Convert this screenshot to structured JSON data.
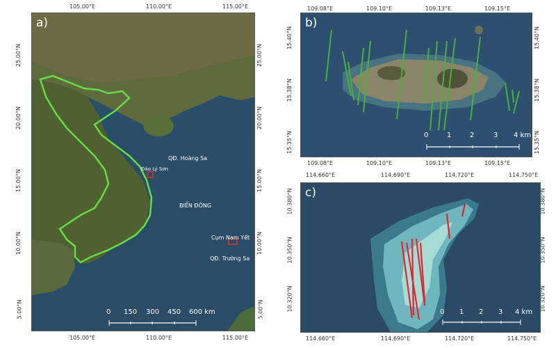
{
  "panel_a": {
    "label": "a)",
    "top_ticks": [
      "105.00°E",
      "110.00°E",
      "115.00°E"
    ],
    "bottom_ticks": [
      "105.00°E",
      "110.00°E",
      "115.00°E"
    ],
    "left_ticks": [
      "25.00°N",
      "20.00°N",
      "15.00°N",
      "10.00°N",
      "5.00°N"
    ],
    "right_ticks": [
      "25.00°N",
      "20.00°N",
      "15.00°N",
      "10.00°N",
      "5.00°N"
    ],
    "labels": {
      "hoang_sa": "QĐ. Hoàng Sa",
      "ly_son": "Đảo Lý Sơn",
      "bien_dong": "BIỂN ĐÔNG",
      "nam_yet": "Cụm Nam Yết",
      "truong_sa": "QĐ. Trường Sa"
    },
    "scale": [
      "0",
      "150",
      "300",
      "450",
      "600 km"
    ]
  },
  "panel_b": {
    "label": "b)",
    "top_ticks": [
      "109.08°E",
      "109.10°E",
      "109.13°E",
      "109.15°E"
    ],
    "bottom_ticks": [
      "109.08°E",
      "109.10°E",
      "109.13°E",
      "109.15°E"
    ],
    "left_ticks": [
      "15.40°N",
      "15.38°N",
      "15.35°N"
    ],
    "right_ticks": [
      "15.40°N",
      "15.38°N",
      "15.35°N"
    ],
    "scale": [
      "0",
      "1",
      "2",
      "3",
      "4 km"
    ]
  },
  "panel_c": {
    "label": "c)",
    "top_ticks": [
      "114.660°E",
      "114.690°E",
      "114.720°E",
      "114.750°E"
    ],
    "bottom_ticks": [
      "114.660°E",
      "114.690°E",
      "114.720°E",
      "114.750°E"
    ],
    "left_ticks": [
      "10.380°N",
      "10.350°N",
      "10.320°N"
    ],
    "right_ticks": [
      "10.380°N",
      "10.350°N",
      "10.320°N"
    ],
    "scale": [
      "0",
      "1",
      "2",
      "3",
      "4 km"
    ]
  },
  "colors": {
    "boundary": "#66dd44",
    "lines_b": "#4caf3a",
    "lines_c": "#e0262e",
    "marker": "#e53030"
  }
}
